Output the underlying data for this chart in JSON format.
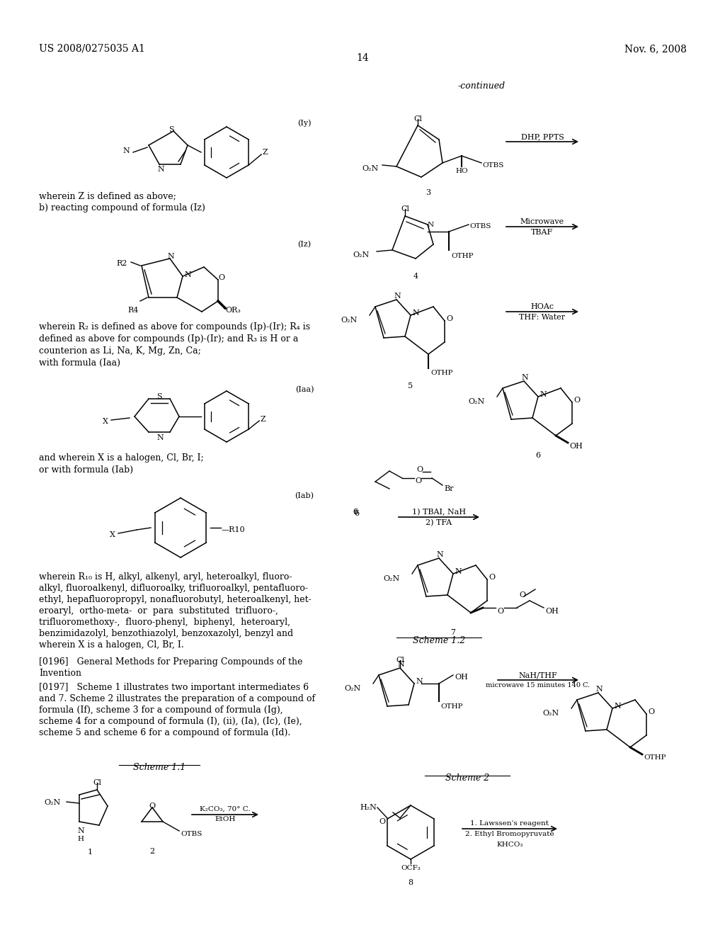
{
  "page_number": "14",
  "header_left": "US 2008/0275035 A1",
  "header_right": "Nov. 6, 2008",
  "bg_color": "#ffffff",
  "text_color": "#000000"
}
